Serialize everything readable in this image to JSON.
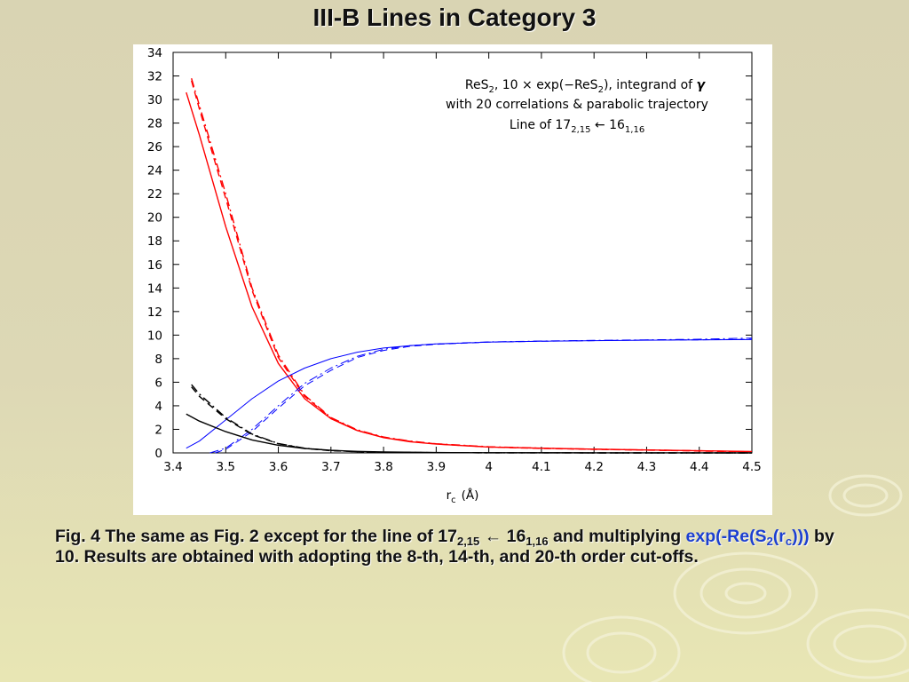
{
  "slide": {
    "title": "III-B Lines in Category 3"
  },
  "annotation": {
    "line1": {
      "a": "ReS",
      "a_sub": "2",
      "b": ", 10 × exp(−ReS",
      "b_sub": "2",
      "c": "), integrand of ",
      "symbol": "γ"
    },
    "line2": "with 20 correlations & parabolic trajectory",
    "line3": {
      "a": "Line of 17",
      "a_sub": "2,15",
      "b": " ← 16",
      "b_sub": "1,16"
    }
  },
  "caption": {
    "p1": "Fig. 4 The same as Fig. 2 except for the line of 17",
    "p1_sub": "2,15",
    "p2": " ← 16",
    "p2_sub": "1,16",
    "p3": " and multiplying ",
    "hl1": "exp(-Re(S",
    "hl1_sub": "2",
    "hl2": "(r",
    "hl2_sub": "c",
    "hl3": ")))",
    "p4": " by 10. Results are obtained with adopting the 8-th, 14-th, and 20-th order cut-offs."
  },
  "colors": {
    "background": "#ddd8b5",
    "red": "#ff0000",
    "blue": "#0000ff",
    "black": "#000000",
    "highlight": "#1c3fd0"
  },
  "chart_data": {
    "type": "line",
    "xlabel": "r",
    "xlabel_sub": "c",
    "xlabel_unit": "(Å)",
    "ylabel": "",
    "xlim": [
      3.4,
      4.5
    ],
    "ylim": [
      0,
      34
    ],
    "xticks": [
      3.4,
      3.5,
      3.6,
      3.7,
      3.8,
      3.9,
      4,
      4.1,
      4.2,
      4.3,
      4.4,
      4.5
    ],
    "yticks": [
      0,
      2,
      4,
      6,
      8,
      10,
      12,
      14,
      16,
      18,
      20,
      22,
      24,
      26,
      28,
      30,
      32,
      34
    ],
    "grid": false,
    "series": [
      {
        "color": "#ff0000",
        "dash": "solid",
        "x": [
          3.425,
          3.45,
          3.5,
          3.55,
          3.6,
          3.65,
          3.7,
          3.75,
          3.8,
          3.85,
          3.9,
          4.0,
          4.1,
          4.2,
          4.3,
          4.4,
          4.5
        ],
        "y": [
          30.6,
          27.0,
          19.2,
          12.4,
          7.6,
          4.6,
          2.9,
          1.9,
          1.3,
          0.95,
          0.75,
          0.5,
          0.4,
          0.32,
          0.25,
          0.18,
          0.12
        ]
      },
      {
        "color": "#ff0000",
        "dash": "dashdot",
        "x": [
          3.435,
          3.45,
          3.5,
          3.55,
          3.6,
          3.65,
          3.7,
          3.75,
          3.8,
          3.85,
          3.9,
          4.0,
          4.1,
          4.2,
          4.3,
          4.4,
          4.5
        ],
        "y": [
          31.8,
          29.5,
          22.0,
          14.0,
          8.3,
          4.9,
          3.0,
          1.95,
          1.35,
          1.0,
          0.78,
          0.52,
          0.4,
          0.32,
          0.25,
          0.18,
          0.1
        ]
      },
      {
        "color": "#ff0000",
        "dash": "dash",
        "x": [
          3.435,
          3.45,
          3.5,
          3.55,
          3.6,
          3.65,
          3.7,
          3.75,
          3.8,
          3.85,
          3.9,
          4.0,
          4.1,
          4.2,
          4.3,
          4.4,
          4.5
        ],
        "y": [
          31.6,
          29.2,
          21.6,
          13.8,
          8.1,
          4.8,
          2.95,
          1.9,
          1.32,
          0.98,
          0.76,
          0.5,
          0.38,
          0.3,
          0.23,
          0.16,
          0.08
        ]
      },
      {
        "color": "#0000ff",
        "dash": "solid",
        "x": [
          3.425,
          3.45,
          3.5,
          3.55,
          3.6,
          3.65,
          3.7,
          3.75,
          3.8,
          3.85,
          3.9,
          4.0,
          4.1,
          4.2,
          4.3,
          4.4,
          4.5
        ],
        "y": [
          0.4,
          1.0,
          2.8,
          4.6,
          6.1,
          7.2,
          8.0,
          8.55,
          8.9,
          9.1,
          9.25,
          9.4,
          9.48,
          9.53,
          9.57,
          9.6,
          9.62
        ]
      },
      {
        "color": "#0000ff",
        "dash": "dashdot",
        "x": [
          3.47,
          3.5,
          3.55,
          3.6,
          3.65,
          3.7,
          3.75,
          3.8,
          3.85,
          3.9,
          4.0,
          4.1,
          4.2,
          4.3,
          4.4,
          4.5
        ],
        "y": [
          0.0,
          0.4,
          2.0,
          4.0,
          5.9,
          7.2,
          8.2,
          8.8,
          9.1,
          9.25,
          9.42,
          9.5,
          9.55,
          9.6,
          9.65,
          9.75
        ]
      },
      {
        "color": "#0000ff",
        "dash": "dash",
        "x": [
          3.48,
          3.5,
          3.55,
          3.6,
          3.65,
          3.7,
          3.75,
          3.8,
          3.85,
          3.9,
          4.0,
          4.1,
          4.2,
          4.3,
          4.4,
          4.5
        ],
        "y": [
          0.0,
          0.3,
          1.8,
          3.8,
          5.7,
          7.0,
          8.1,
          8.7,
          9.05,
          9.22,
          9.4,
          9.48,
          9.53,
          9.58,
          9.6,
          9.65
        ]
      },
      {
        "color": "#000000",
        "dash": "solid",
        "x": [
          3.425,
          3.45,
          3.5,
          3.55,
          3.6,
          3.65,
          3.7,
          3.75,
          3.8,
          3.9,
          4.0,
          4.2,
          4.5
        ],
        "y": [
          3.3,
          2.7,
          1.8,
          1.1,
          0.65,
          0.38,
          0.22,
          0.13,
          0.08,
          0.03,
          0.015,
          0.005,
          0.0
        ]
      },
      {
        "color": "#000000",
        "dash": "dashdot",
        "x": [
          3.435,
          3.45,
          3.5,
          3.55,
          3.6,
          3.65,
          3.7,
          3.75,
          3.8,
          3.9,
          4.0,
          4.2,
          4.5
        ],
        "y": [
          5.8,
          5.0,
          3.0,
          1.6,
          0.8,
          0.4,
          0.2,
          0.1,
          0.05,
          0.02,
          0.01,
          0.0,
          0.0
        ]
      },
      {
        "color": "#000000",
        "dash": "dash",
        "x": [
          3.435,
          3.45,
          3.5,
          3.55,
          3.6,
          3.65,
          3.7,
          3.75,
          3.8,
          3.9,
          4.0,
          4.2,
          4.5
        ],
        "y": [
          5.6,
          4.8,
          2.9,
          1.55,
          0.78,
          0.38,
          0.19,
          0.1,
          0.05,
          0.02,
          0.01,
          0.0,
          0.0
        ]
      }
    ]
  }
}
